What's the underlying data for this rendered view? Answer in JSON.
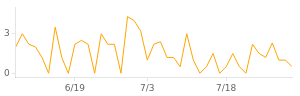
{
  "chart_data": {
    "type": "line",
    "x": [
      0,
      1,
      2,
      3,
      4,
      5,
      6,
      7,
      8,
      9,
      10,
      11,
      12,
      13,
      14,
      15,
      16,
      17,
      18,
      19,
      20,
      21,
      22,
      23,
      24,
      25,
      26,
      27,
      28,
      29,
      30,
      31,
      32,
      33,
      34,
      35,
      36,
      37,
      38,
      39,
      40,
      41,
      42
    ],
    "values": [
      2.0,
      3.0,
      2.2,
      2.0,
      1.2,
      0.0,
      3.5,
      1.2,
      0.0,
      2.2,
      2.5,
      2.2,
      0.0,
      3.0,
      2.2,
      2.2,
      0.0,
      4.3,
      4.0,
      3.2,
      1.0,
      2.2,
      2.4,
      1.2,
      1.2,
      0.5,
      3.0,
      1.0,
      0.0,
      0.5,
      1.5,
      0.0,
      0.5,
      1.5,
      0.5,
      0.0,
      2.2,
      1.5,
      1.2,
      2.3,
      1.0,
      1.0,
      0.5
    ],
    "color": "#FFA500",
    "xlim": [
      0,
      42
    ],
    "xticks": [
      {
        "value": 9,
        "label": "6/19"
      },
      {
        "value": 20,
        "label": "7/3"
      },
      {
        "value": 32,
        "label": "7/18"
      }
    ],
    "ylim": [
      -0.3,
      5.0
    ],
    "yticks": [
      0,
      3
    ],
    "grid": false
  }
}
